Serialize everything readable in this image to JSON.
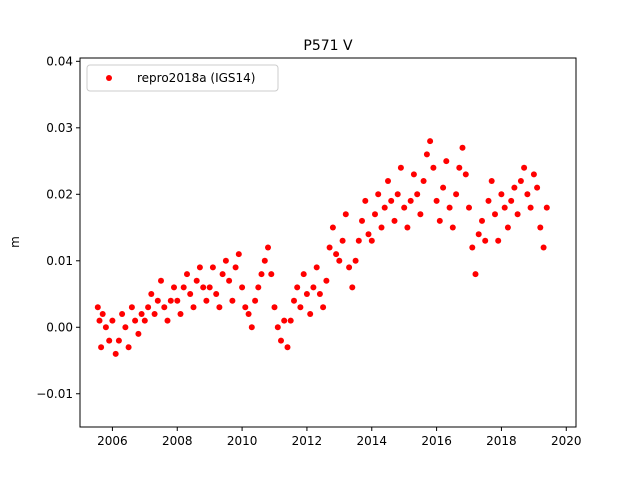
{
  "chart_data": {
    "type": "scatter",
    "title": "P571 V",
    "xlabel": "",
    "ylabel": "m",
    "xlim": [
      2005.0,
      2020.3
    ],
    "ylim": [
      -0.015,
      0.0405
    ],
    "xticks": [
      2006,
      2008,
      2010,
      2012,
      2014,
      2016,
      2018,
      2020
    ],
    "xtick_labels": [
      "2006",
      "2008",
      "2010",
      "2012",
      "2014",
      "2016",
      "2018",
      "2020"
    ],
    "yticks": [
      -0.01,
      0.0,
      0.01,
      0.02,
      0.03,
      0.04
    ],
    "ytick_labels": [
      "−0.01",
      "0.00",
      "0.01",
      "0.02",
      "0.03",
      "0.04"
    ],
    "grid": false,
    "legend_position": "upper-left",
    "color": "#ff0000",
    "series": [
      {
        "name": "repro2018a (IGS14)",
        "color": "#ff0000",
        "x": [
          2005.55,
          2005.6,
          2005.65,
          2005.7,
          2005.8,
          2005.9,
          2006.0,
          2006.1,
          2006.2,
          2006.3,
          2006.4,
          2006.5,
          2006.6,
          2006.7,
          2006.8,
          2006.9,
          2007.0,
          2007.1,
          2007.2,
          2007.3,
          2007.4,
          2007.5,
          2007.6,
          2007.7,
          2007.8,
          2007.9,
          2008.0,
          2008.1,
          2008.2,
          2008.3,
          2008.4,
          2008.5,
          2008.6,
          2008.7,
          2008.8,
          2008.9,
          2009.0,
          2009.1,
          2009.2,
          2009.3,
          2009.4,
          2009.5,
          2009.6,
          2009.7,
          2009.8,
          2009.9,
          2010.0,
          2010.1,
          2010.2,
          2010.3,
          2010.4,
          2010.5,
          2010.6,
          2010.7,
          2010.8,
          2010.9,
          2011.0,
          2011.1,
          2011.2,
          2011.3,
          2011.4,
          2011.5,
          2011.6,
          2011.7,
          2011.8,
          2011.9,
          2012.0,
          2012.1,
          2012.2,
          2012.3,
          2012.4,
          2012.5,
          2012.6,
          2012.7,
          2012.8,
          2012.9,
          2013.0,
          2013.1,
          2013.2,
          2013.3,
          2013.4,
          2013.5,
          2013.6,
          2013.7,
          2013.8,
          2013.9,
          2014.0,
          2014.1,
          2014.2,
          2014.3,
          2014.4,
          2014.5,
          2014.6,
          2014.7,
          2014.8,
          2014.9,
          2015.0,
          2015.1,
          2015.2,
          2015.3,
          2015.4,
          2015.5,
          2015.6,
          2015.7,
          2015.8,
          2015.9,
          2016.0,
          2016.1,
          2016.2,
          2016.3,
          2016.4,
          2016.5,
          2016.6,
          2016.7,
          2016.8,
          2016.9,
          2017.0,
          2017.1,
          2017.2,
          2017.3,
          2017.4,
          2017.5,
          2017.6,
          2017.7,
          2017.8,
          2017.9,
          2018.0,
          2018.1,
          2018.2,
          2018.3,
          2018.4,
          2018.5,
          2018.6,
          2018.7,
          2018.8,
          2018.9,
          2019.0,
          2019.1,
          2019.2,
          2019.3,
          2019.4
        ],
        "y": [
          0.003,
          0.001,
          -0.003,
          0.002,
          0.0,
          -0.002,
          0.001,
          -0.004,
          -0.002,
          0.002,
          0.0,
          -0.003,
          0.003,
          0.001,
          -0.001,
          0.002,
          0.001,
          0.003,
          0.005,
          0.002,
          0.004,
          0.007,
          0.003,
          0.001,
          0.004,
          0.006,
          0.004,
          0.002,
          0.006,
          0.008,
          0.005,
          0.003,
          0.007,
          0.009,
          0.006,
          0.004,
          0.006,
          0.009,
          0.005,
          0.003,
          0.008,
          0.01,
          0.007,
          0.004,
          0.009,
          0.011,
          0.006,
          0.003,
          0.002,
          0.0,
          0.004,
          0.006,
          0.008,
          0.01,
          0.012,
          0.008,
          0.003,
          0.0,
          -0.002,
          0.001,
          -0.003,
          0.001,
          0.004,
          0.006,
          0.003,
          0.008,
          0.005,
          0.002,
          0.006,
          0.009,
          0.005,
          0.003,
          0.007,
          0.012,
          0.015,
          0.011,
          0.01,
          0.013,
          0.017,
          0.009,
          0.006,
          0.01,
          0.013,
          0.016,
          0.019,
          0.014,
          0.013,
          0.017,
          0.02,
          0.015,
          0.018,
          0.022,
          0.019,
          0.016,
          0.02,
          0.024,
          0.018,
          0.015,
          0.019,
          0.023,
          0.02,
          0.017,
          0.022,
          0.026,
          0.028,
          0.024,
          0.019,
          0.016,
          0.021,
          0.025,
          0.018,
          0.015,
          0.02,
          0.024,
          0.027,
          0.023,
          0.018,
          0.012,
          0.008,
          0.014,
          0.016,
          0.013,
          0.019,
          0.022,
          0.017,
          0.013,
          0.02,
          0.018,
          0.015,
          0.019,
          0.021,
          0.017,
          0.022,
          0.024,
          0.02,
          0.018,
          0.023,
          0.021,
          0.015,
          0.012,
          0.018
        ]
      }
    ]
  }
}
